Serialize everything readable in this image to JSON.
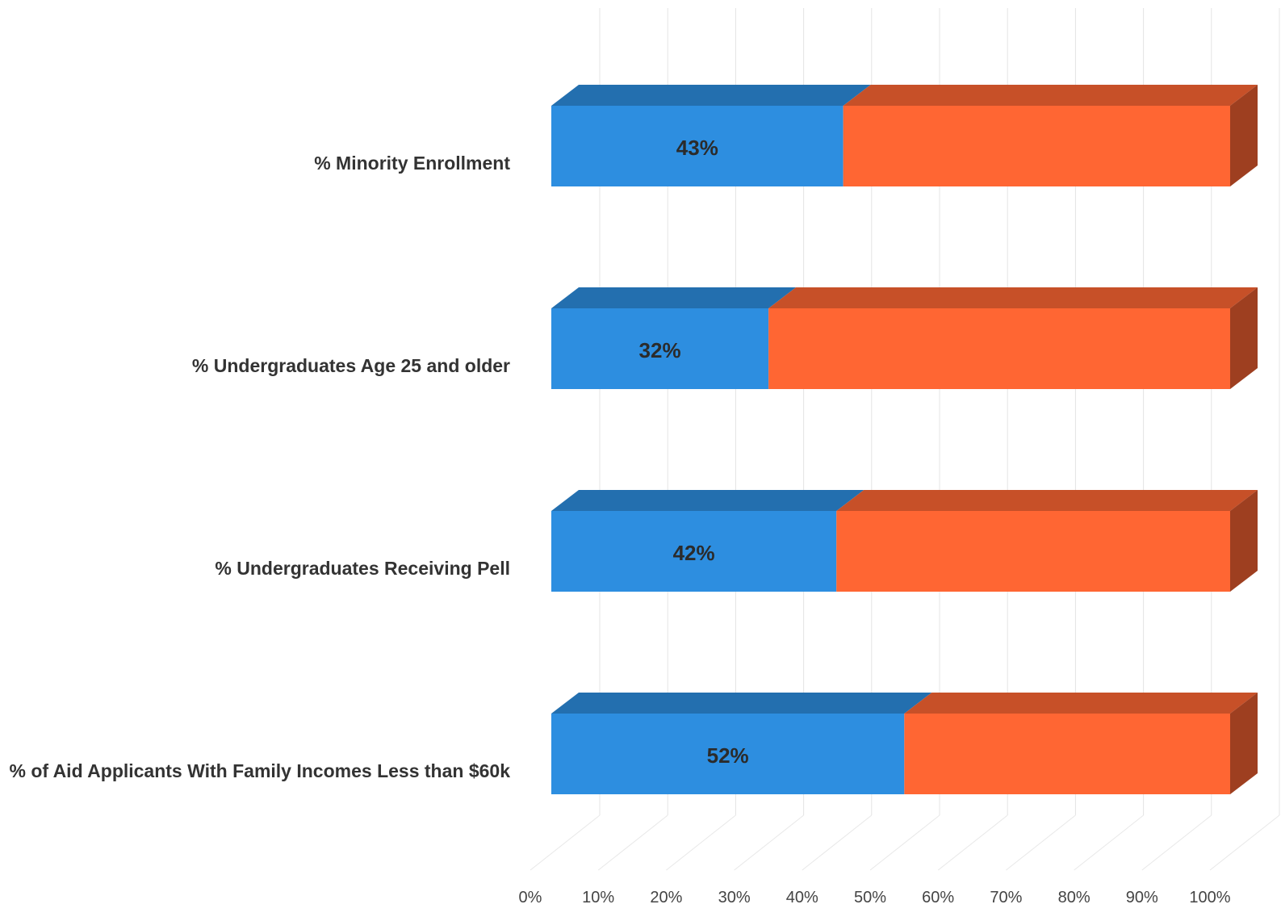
{
  "chart_data": {
    "type": "bar",
    "orientation": "horizontal",
    "stacked": "100%",
    "three_d": true,
    "categories": [
      "% Minority Enrollment",
      "% Undergraduates Age 25 and older",
      "% Undergraduates Receiving Pell",
      "% of Aid Applicants With Family Incomes Less than $60k"
    ],
    "series": [
      {
        "values": [
          43,
          32,
          42,
          52
        ],
        "color": "#2d8ee0",
        "data_labels": [
          "43%",
          "32%",
          "42%",
          "52%"
        ]
      },
      {
        "values": [
          57,
          68,
          58,
          48
        ],
        "color": "#ff6633"
      }
    ],
    "x_ticks": [
      "0%",
      "10%",
      "20%",
      "30%",
      "40%",
      "50%",
      "60%",
      "70%",
      "80%",
      "90%",
      "100%"
    ],
    "xlim": [
      0,
      100
    ],
    "grid": true,
    "legend": "none"
  }
}
